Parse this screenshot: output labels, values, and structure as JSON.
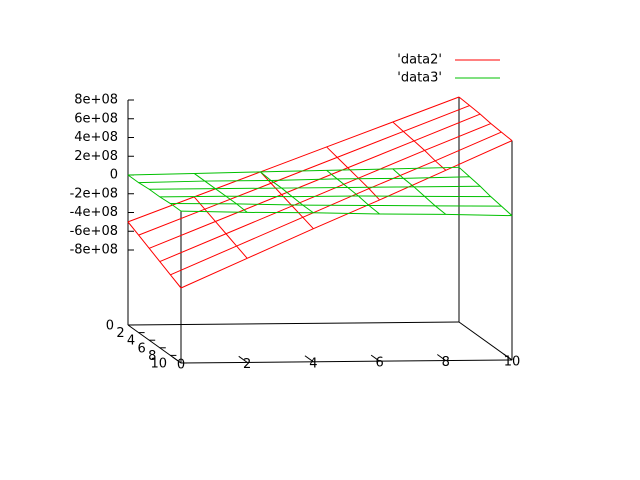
{
  "chart_data": {
    "type": "surface",
    "x": [
      0,
      2,
      4,
      6,
      8,
      10
    ],
    "y": [
      0,
      2,
      4,
      6,
      8,
      10
    ],
    "xlim": [
      0,
      10
    ],
    "xticks": [
      0,
      2,
      4,
      6,
      8,
      10
    ],
    "ylim": [
      0,
      10
    ],
    "yticks": [
      0,
      2,
      4,
      6,
      8,
      10
    ],
    "zlim": [
      -1600000000,
      800000000
    ],
    "zticks": [
      {
        "value": 800000000,
        "label": "8e+08"
      },
      {
        "value": 600000000,
        "label": "6e+08"
      },
      {
        "value": 400000000,
        "label": "4e+08"
      },
      {
        "value": 200000000,
        "label": "2e+08"
      },
      0,
      {
        "value": -200000000,
        "label": "-2e+08"
      },
      {
        "value": -400000000,
        "label": "-4e+08"
      },
      {
        "value": -600000000,
        "label": "-6e+08"
      },
      {
        "value": -800000000,
        "label": "-8e+08"
      }
    ],
    "series": [
      {
        "name": "'data2'",
        "color": "#ff0000",
        "values": [
          [
            -500000000,
            -240000000,
            20000000,
            280000000,
            540000000,
            800000000
          ],
          [
            -560000000,
            -290000000,
            -20000000,
            250000000,
            520000000,
            790000000
          ],
          [
            -620000000,
            -340000000,
            -60000000,
            220000000,
            500000000,
            780000000
          ],
          [
            -680000000,
            -390000000,
            -100000000,
            190000000,
            480000000,
            760000000
          ],
          [
            -740000000,
            -440000000,
            -140000000,
            160000000,
            450000000,
            750000000
          ],
          [
            -800000000,
            -490000000,
            -180000000,
            120000000,
            430000000,
            740000000
          ]
        ]
      },
      {
        "name": "'data3'",
        "color": "#00c000",
        "values": [
          [
            0,
            10000000,
            20000000,
            30000000,
            40000000,
            50000000
          ],
          [
            0,
            10000000,
            10000000,
            20000000,
            20000000,
            30000000
          ],
          [
            10000000,
            10000000,
            10000000,
            10000000,
            10000000,
            10000000
          ],
          [
            10000000,
            10000000,
            0,
            0,
            -10000000,
            -20000000
          ],
          [
            20000000,
            10000000,
            -10000000,
            -20000000,
            -30000000,
            -40000000
          ],
          [
            20000000,
            0,
            -10000000,
            -30000000,
            -40000000,
            -60000000
          ]
        ]
      }
    ]
  }
}
